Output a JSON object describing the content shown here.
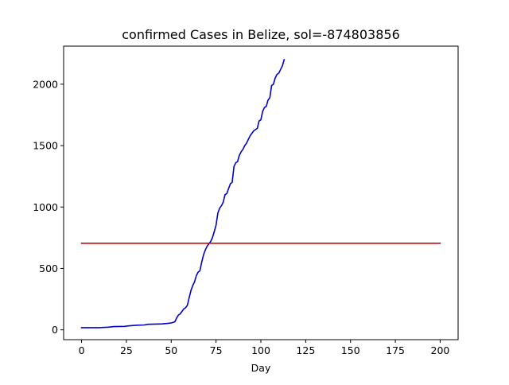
{
  "chart_data": {
    "type": "line",
    "title": "confirmed Cases in Belize, sol=-874803856",
    "xlabel": "Day",
    "ylabel": "",
    "xlim": [
      -10,
      210
    ],
    "ylim": [
      -80,
      2310
    ],
    "xticks": [
      0,
      25,
      50,
      75,
      100,
      125,
      150,
      175,
      200
    ],
    "yticks": [
      0,
      500,
      1000,
      1500,
      2000
    ],
    "grid": false,
    "series": [
      {
        "color": "#0000cc",
        "x": [
          0,
          10,
          15,
          18,
          24,
          26,
          30,
          35,
          37,
          45,
          48,
          50,
          52,
          53,
          54,
          55,
          56,
          57,
          58,
          59,
          60,
          61,
          62,
          63,
          64,
          65,
          66,
          67,
          68,
          69,
          70,
          71,
          72,
          73,
          74,
          75,
          76,
          77,
          78,
          79,
          80,
          81,
          82,
          83,
          84,
          85,
          86,
          87,
          88,
          89,
          90,
          91,
          92,
          93,
          94,
          95,
          96,
          97,
          98,
          99,
          100,
          101,
          102,
          103,
          104,
          105,
          106,
          107,
          108,
          109,
          110,
          111,
          112,
          113
        ],
        "y": [
          18,
          18,
          22,
          26,
          28,
          32,
          37,
          40,
          45,
          48,
          52,
          56,
          65,
          95,
          120,
          130,
          150,
          170,
          180,
          200,
          260,
          320,
          360,
          390,
          440,
          470,
          480,
          550,
          610,
          650,
          680,
          700,
          720,
          750,
          800,
          850,
          950,
          990,
          1010,
          1040,
          1100,
          1110,
          1150,
          1190,
          1200,
          1330,
          1360,
          1370,
          1420,
          1450,
          1470,
          1500,
          1520,
          1550,
          1580,
          1600,
          1620,
          1630,
          1640,
          1700,
          1710,
          1780,
          1810,
          1820,
          1870,
          1890,
          1990,
          2000,
          2050,
          2080,
          2090,
          2120,
          2150,
          2200
        ]
      },
      {
        "color": "#dd0000",
        "x": [
          0,
          200
        ],
        "y": [
          705,
          705
        ]
      }
    ]
  }
}
